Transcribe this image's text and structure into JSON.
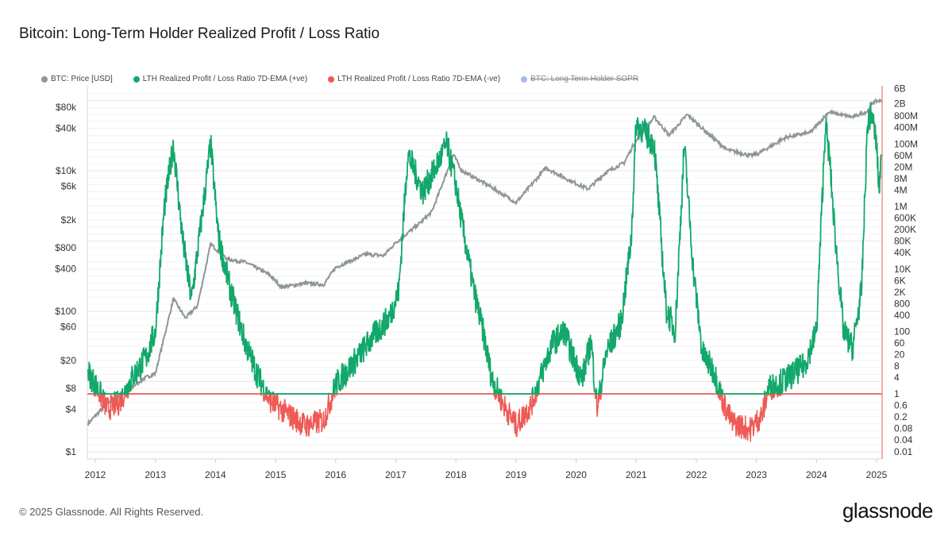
{
  "title": "Bitcoin: Long-Term Holder Realized Profit / Loss Ratio",
  "footer": "© 2025 Glassnode. All Rights Reserved.",
  "logo": "glassnode",
  "chart_data": {
    "type": "line",
    "title": "Bitcoin: Long-Term Holder Realized Profit / Loss Ratio",
    "legend_position": "top-left",
    "grid": true,
    "legend": [
      {
        "name": "BTC: Price [USD]",
        "color": "#8e9696",
        "hidden": false
      },
      {
        "name": "LTH Realized Profit / Loss Ratio 7D-EMA (+ve)",
        "color": "#12a86b",
        "hidden": false
      },
      {
        "name": "LTH Realized Profit / Loss Ratio 7D-EMA (-ve)",
        "color": "#ee5a55",
        "hidden": false
      },
      {
        "name": "BTC: Long Term Holder SOPR",
        "color": "#7f9be6",
        "hidden": true
      }
    ],
    "x_ticks": [
      "2012",
      "2013",
      "2014",
      "2015",
      "2016",
      "2017",
      "2018",
      "2019",
      "2020",
      "2021",
      "2022",
      "2023",
      "2024",
      "2025"
    ],
    "xlim": [
      2011.85,
      2025.1
    ],
    "left_axis": {
      "scale": "log",
      "ylim": [
        1,
        120000
      ],
      "ticks": [
        "$80k",
        "$40k",
        "$10k",
        "$6k",
        "$2k",
        "$800",
        "$400",
        "$100",
        "$60",
        "$20",
        "$8",
        "$4",
        "$1"
      ],
      "tick_values": [
        80000,
        40000,
        10000,
        6000,
        2000,
        800,
        400,
        100,
        60,
        20,
        8,
        4,
        1
      ]
    },
    "right_axis": {
      "scale": "log",
      "ylim": [
        0.01,
        6000000000
      ],
      "ticks": [
        "6B",
        "2B",
        "800M",
        "400M",
        "100M",
        "60M",
        "20M",
        "8M",
        "4M",
        "1M",
        "600K",
        "200K",
        "80K",
        "40K",
        "10K",
        "6K",
        "2K",
        "800",
        "400",
        "100",
        "60",
        "20",
        "8",
        "4",
        "1",
        "0.6",
        "0.2",
        "0.08",
        "0.04",
        "0.01"
      ],
      "tick_values": [
        6000000000.0,
        2000000000.0,
        800000000.0,
        400000000.0,
        100000000.0,
        60000000.0,
        20000000.0,
        8000000.0,
        4000000.0,
        1000000.0,
        600000.0,
        200000.0,
        80000.0,
        40000.0,
        10000.0,
        6000.0,
        2000.0,
        800,
        400,
        100,
        60,
        20,
        8,
        4,
        1,
        0.6,
        0.2,
        0.08,
        0.04,
        0.01
      ]
    },
    "threshold": 1,
    "series": [
      {
        "name": "BTC: Price [USD]",
        "axis": "left",
        "x": [
          2011.88,
          2012.2,
          2012.5,
          2012.8,
          2013.0,
          2013.3,
          2013.5,
          2013.7,
          2013.92,
          2014.2,
          2014.5,
          2014.9,
          2015.1,
          2015.5,
          2015.8,
          2016.0,
          2016.5,
          2016.8,
          2017.0,
          2017.4,
          2017.6,
          2017.96,
          2018.1,
          2018.5,
          2018.9,
          2019.0,
          2019.5,
          2019.9,
          2020.2,
          2020.5,
          2020.8,
          2020.95,
          2021.3,
          2021.55,
          2021.85,
          2022.1,
          2022.5,
          2022.9,
          2023.0,
          2023.5,
          2023.9,
          2024.2,
          2024.6,
          2024.85,
          2024.95,
          2025.08
        ],
        "y": [
          2.5,
          5,
          7,
          11,
          13,
          150,
          80,
          120,
          900,
          550,
          500,
          330,
          220,
          250,
          240,
          420,
          650,
          620,
          950,
          1800,
          2600,
          17000,
          10000,
          6500,
          4000,
          3500,
          11000,
          7200,
          5500,
          9500,
          13000,
          23000,
          58000,
          32000,
          63000,
          40000,
          20000,
          16500,
          17000,
          30000,
          35000,
          68000,
          58000,
          70000,
          96000,
          100000
        ]
      },
      {
        "name": "LTH Realized Profit / Loss Ratio 7D-EMA",
        "axis": "right",
        "x": [
          2011.88,
          2012.0,
          2012.2,
          2012.4,
          2012.6,
          2012.85,
          2013.0,
          2013.15,
          2013.3,
          2013.45,
          2013.6,
          2013.75,
          2013.92,
          2014.05,
          2014.25,
          2014.5,
          2014.7,
          2014.9,
          2015.2,
          2015.5,
          2015.8,
          2016.0,
          2016.3,
          2016.6,
          2016.9,
          2017.05,
          2017.2,
          2017.45,
          2017.6,
          2017.85,
          2018.0,
          2018.1,
          2018.3,
          2018.45,
          2018.6,
          2018.8,
          2019.0,
          2019.25,
          2019.4,
          2019.6,
          2019.8,
          2019.95,
          2020.1,
          2020.25,
          2020.35,
          2020.5,
          2020.75,
          2020.92,
          2021.0,
          2021.3,
          2021.5,
          2021.65,
          2021.8,
          2021.95,
          2022.1,
          2022.3,
          2022.45,
          2022.6,
          2022.9,
          2023.1,
          2023.2,
          2023.5,
          2023.8,
          2024.0,
          2024.15,
          2024.22,
          2024.3,
          2024.45,
          2024.6,
          2024.75,
          2024.85,
          2024.92,
          2025.0,
          2025.04,
          2025.08
        ],
        "y": [
          5,
          2,
          0.3,
          0.5,
          3,
          15,
          100,
          1000000.0,
          100000000.0,
          100000.0,
          1000,
          200000.0,
          100000000.0,
          100000.0,
          2000,
          40,
          4,
          0.6,
          0.2,
          0.08,
          0.12,
          2,
          10,
          60,
          300,
          2000,
          50000000.0,
          3000000.0,
          10000000.0,
          100000000.0,
          5000000.0,
          300000.0,
          2000,
          100,
          3,
          0.4,
          0.08,
          0.4,
          3,
          40,
          100,
          15,
          3,
          50,
          0.3,
          20,
          200,
          100000.0,
          500000000.0,
          100000000.0,
          500,
          100,
          100000000.0,
          10000.0,
          20,
          5,
          0.5,
          0.1,
          0.06,
          0.2,
          1.5,
          3,
          8,
          100,
          500000000.0,
          30000000.0,
          200000.0,
          100,
          30,
          2000.0,
          500000000.0,
          1000000000.0,
          100000000.0,
          3000000.0,
          50000000.0
        ]
      }
    ]
  }
}
